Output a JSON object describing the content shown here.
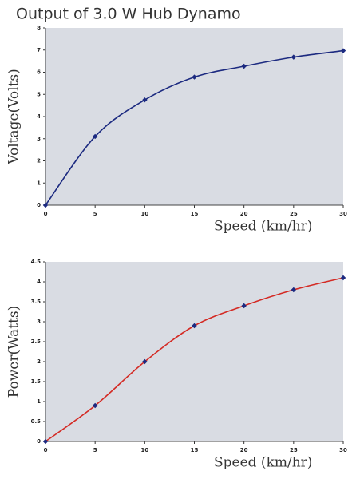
{
  "chart_data": [
    {
      "type": "line",
      "title": "Output of 3.0 W Hub Dynamo",
      "x": [
        0,
        5,
        10,
        15,
        20,
        25,
        30
      ],
      "values": [
        0,
        3.1,
        4.75,
        5.78,
        6.27,
        6.68,
        6.97
      ],
      "color": "#1c2a80",
      "marker_color": "#1c2a80",
      "x_label": "Speed (km/hr)",
      "y_label": "Voltage(Volts)",
      "xlim": [
        0,
        30
      ],
      "xticks": [
        0,
        5,
        10,
        15,
        20,
        25,
        30
      ],
      "ylim": [
        0,
        8
      ],
      "yticks": [
        0,
        1,
        2,
        3,
        4,
        5,
        6,
        7,
        8
      ],
      "grid": false
    },
    {
      "type": "line",
      "x": [
        0,
        5,
        10,
        15,
        20,
        25,
        30
      ],
      "values": [
        0,
        0.9,
        2.0,
        2.9,
        3.4,
        3.8,
        4.1
      ],
      "color": "#d42a24",
      "marker_color": "#1c2a80",
      "x_label": "Speed (km/hr)",
      "y_label": "Power(Watts)",
      "xlim": [
        0,
        30
      ],
      "xticks": [
        0,
        5,
        10,
        15,
        20,
        25,
        30
      ],
      "ylim": [
        0,
        4.5
      ],
      "yticks": [
        0,
        0.5,
        1,
        1.5,
        2,
        2.5,
        3,
        3.5,
        4,
        4.5
      ],
      "grid": false
    }
  ]
}
